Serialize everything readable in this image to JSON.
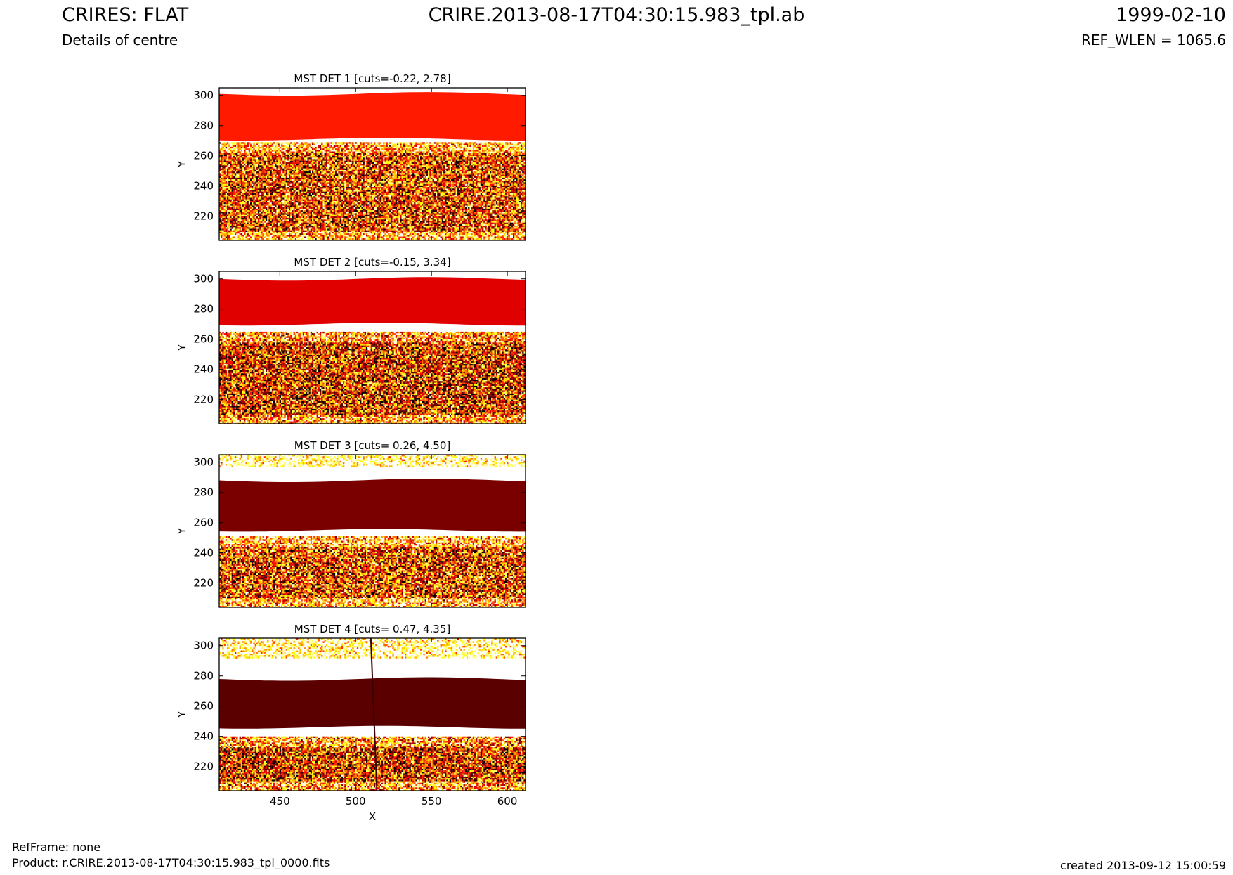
{
  "header": {
    "title_left": "CRIRES: FLAT",
    "subtitle_left": "Details of centre",
    "title_center": "CRIRE.2013-08-17T04:30:15.983_tpl.ab",
    "title_right": "1999-02-10",
    "subtitle_right": "REF_WLEN = 1065.6"
  },
  "footer": {
    "ref_frame": "RefFrame: none",
    "product": "Product: r.CRIRE.2013-08-17T04:30:15.983_tpl_0000.fits",
    "created": "created 2013-09-12 15:00:59"
  },
  "chart_data": [
    {
      "type": "heatmap",
      "title": "MST DET 1 [cuts=-0.22, 2.78]",
      "detector": 1,
      "cuts": [
        -0.22,
        2.78
      ],
      "xlabel": "",
      "ylabel": "Y",
      "xlim": [
        410,
        612
      ],
      "ylim": [
        204,
        305
      ],
      "xticks": [],
      "yticks": [
        220,
        240,
        260,
        280,
        300
      ],
      "colormap": "hot",
      "regions": [
        {
          "kind": "noise",
          "y_from": 204,
          "y_to": 269,
          "mean": 0.45
        },
        {
          "kind": "blank",
          "y_from": 269,
          "y_to": 271
        },
        {
          "kind": "order",
          "y_from": 271,
          "y_to": 301,
          "level": 0.42,
          "color": "#ff1a00"
        },
        {
          "kind": "blank",
          "y_from": 301,
          "y_to": 305
        }
      ]
    },
    {
      "type": "heatmap",
      "title": "MST DET 2 [cuts=-0.15, 3.34]",
      "detector": 2,
      "cuts": [
        -0.15,
        3.34
      ],
      "xlabel": "",
      "ylabel": "Y",
      "xlim": [
        410,
        612
      ],
      "ylim": [
        204,
        305
      ],
      "xticks": [],
      "yticks": [
        220,
        240,
        260,
        280,
        300
      ],
      "colormap": "hot",
      "regions": [
        {
          "kind": "noise",
          "y_from": 204,
          "y_to": 265,
          "mean": 0.4
        },
        {
          "kind": "blank",
          "y_from": 265,
          "y_to": 270
        },
        {
          "kind": "order",
          "y_from": 270,
          "y_to": 300,
          "level": 0.37,
          "color": "#e00000"
        },
        {
          "kind": "blank",
          "y_from": 300,
          "y_to": 305
        }
      ]
    },
    {
      "type": "heatmap",
      "title": "MST DET 3 [cuts= 0.26, 4.50]",
      "detector": 3,
      "cuts": [
        0.26,
        4.5
      ],
      "xlabel": "",
      "ylabel": "Y",
      "xlim": [
        410,
        612
      ],
      "ylim": [
        204,
        305
      ],
      "xticks": [],
      "yticks": [
        220,
        240,
        260,
        280,
        300
      ],
      "colormap": "hot",
      "regions": [
        {
          "kind": "noise",
          "y_from": 204,
          "y_to": 251,
          "mean": 0.45
        },
        {
          "kind": "blank",
          "y_from": 251,
          "y_to": 255
        },
        {
          "kind": "order",
          "y_from": 255,
          "y_to": 288,
          "level": 0.2,
          "color": "#7a0000"
        },
        {
          "kind": "blank",
          "y_from": 288,
          "y_to": 297
        },
        {
          "kind": "noise",
          "y_from": 297,
          "y_to": 305,
          "mean": 0.75
        }
      ]
    },
    {
      "type": "heatmap",
      "title": "MST DET 4 [cuts= 0.47, 4.35]",
      "detector": 4,
      "cuts": [
        0.47,
        4.35
      ],
      "xlabel": "X",
      "ylabel": "Y",
      "xlim": [
        410,
        612
      ],
      "ylim": [
        204,
        305
      ],
      "xticks": [
        450,
        500,
        550,
        600
      ],
      "yticks": [
        220,
        240,
        260,
        280,
        300
      ],
      "colormap": "hot",
      "regions": [
        {
          "kind": "noise",
          "y_from": 204,
          "y_to": 240,
          "mean": 0.4
        },
        {
          "kind": "blank",
          "y_from": 240,
          "y_to": 246
        },
        {
          "kind": "order",
          "y_from": 246,
          "y_to": 278,
          "level": 0.15,
          "color": "#5a0000"
        },
        {
          "kind": "blank",
          "y_from": 278,
          "y_to": 292
        },
        {
          "kind": "noise",
          "y_from": 292,
          "y_to": 305,
          "mean": 0.72
        }
      ],
      "defect_column": {
        "x_top": 510,
        "x_bottom": 514,
        "color": "#3a0000"
      }
    }
  ]
}
